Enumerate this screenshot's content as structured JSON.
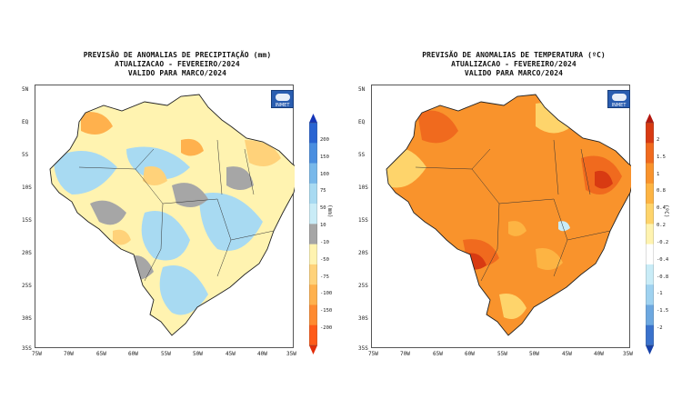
{
  "precip": {
    "title_lines": [
      "PREVISÃO DE ANOMALIAS DE PRECIPITAÇÃO (mm)",
      "ATUALIZACAO - FEVEREIRO/2024",
      "VALIDO PARA MARCO/2024"
    ],
    "unit": "(mm)",
    "legend_ticks": [
      "200",
      "150",
      "100",
      "75",
      "50",
      "10",
      "-10",
      "-50",
      "-75",
      "-100",
      "-150",
      "-200"
    ],
    "legend_colors": [
      "#1535b8",
      "#2a64d2",
      "#4a8ee0",
      "#78b8ea",
      "#a8daf2",
      "#c9ecf7",
      "#a6a6a6",
      "#fff3b0",
      "#ffd27a",
      "#ffb14d",
      "#ff8a30",
      "#ff5a18",
      "#e22d0a"
    ]
  },
  "temp": {
    "title_lines": [
      "PREVISÃO DE ANOMALIAS DE TEMPERATURA (ºC)",
      "ATUALIZACAO - FEVEREIRO/2024",
      "VALIDO PARA MARCO/2024"
    ],
    "unit": "(ºC)",
    "legend_ticks": [
      "2",
      "1.5",
      "1",
      "0.8",
      "0.4",
      "0.2",
      "-0.2",
      "-0.4",
      "-0.8",
      "-1",
      "-1.5",
      "-2"
    ],
    "legend_colors": [
      "#b3170e",
      "#d83a12",
      "#f06a1e",
      "#f9932c",
      "#fdb443",
      "#fed46b",
      "#fff3b0",
      "#ffffff",
      "#c9ecf7",
      "#9fd2f0",
      "#6da8e0",
      "#3a72cc",
      "#1640a8"
    ]
  },
  "axes": {
    "lat_labels": [
      "5N",
      "EQ",
      "5S",
      "10S",
      "15S",
      "20S",
      "25S",
      "30S",
      "35S"
    ],
    "lon_labels": [
      "75W",
      "70W",
      "65W",
      "60W",
      "55W",
      "50W",
      "45W",
      "40W",
      "35W"
    ]
  },
  "logo_text": "INMET"
}
